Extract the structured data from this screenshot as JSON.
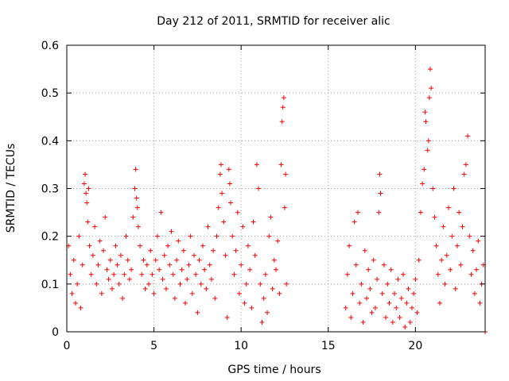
{
  "chart_data": {
    "type": "scatter",
    "title": "Day 212 of 2011, SRMTID for receiver alic",
    "xlabel": "GPS time / hours",
    "ylabel": "SRMTID / TECUs",
    "xlim": [
      0,
      24
    ],
    "ylim": [
      0,
      0.6
    ],
    "xticks": [
      0,
      5,
      10,
      15,
      20
    ],
    "xtick_labels": [
      "0",
      "5",
      "10",
      "15",
      "20"
    ],
    "yticks": [
      0,
      0.1,
      0.2,
      0.3,
      0.4,
      0.5,
      0.6
    ],
    "ytick_labels": [
      "0",
      "0.1",
      "0.2",
      "0.3",
      "0.4",
      "0.5",
      "0.6"
    ],
    "grid": true,
    "marker": "plus",
    "colors": {
      "series": "#ff0000",
      "grid": "#a0a0a0",
      "axis": "#000000"
    },
    "series": [
      {
        "name": "SRMTID",
        "points": [
          [
            0.1,
            0.18
          ],
          [
            0.2,
            0.12
          ],
          [
            0.3,
            0.08
          ],
          [
            0.4,
            0.15
          ],
          [
            0.5,
            0.06
          ],
          [
            0.6,
            0.1
          ],
          [
            0.7,
            0.2
          ],
          [
            0.8,
            0.05
          ],
          [
            0.9,
            0.14
          ],
          [
            1.0,
            0.31
          ],
          [
            1.05,
            0.33
          ],
          [
            1.1,
            0.29
          ],
          [
            1.15,
            0.27
          ],
          [
            1.2,
            0.23
          ],
          [
            1.25,
            0.3
          ],
          [
            1.3,
            0.18
          ],
          [
            1.4,
            0.12
          ],
          [
            1.5,
            0.16
          ],
          [
            1.6,
            0.22
          ],
          [
            1.7,
            0.1
          ],
          [
            1.8,
            0.14
          ],
          [
            1.9,
            0.19
          ],
          [
            2.0,
            0.08
          ],
          [
            2.1,
            0.17
          ],
          [
            2.2,
            0.24
          ],
          [
            2.3,
            0.13
          ],
          [
            2.4,
            0.11
          ],
          [
            2.5,
            0.15
          ],
          [
            2.6,
            0.09
          ],
          [
            2.7,
            0.12
          ],
          [
            2.8,
            0.18
          ],
          [
            2.9,
            0.14
          ],
          [
            3.0,
            0.1
          ],
          [
            3.1,
            0.16
          ],
          [
            3.2,
            0.07
          ],
          [
            3.3,
            0.12
          ],
          [
            3.4,
            0.2
          ],
          [
            3.5,
            0.15
          ],
          [
            3.6,
            0.11
          ],
          [
            3.7,
            0.13
          ],
          [
            3.8,
            0.24
          ],
          [
            3.9,
            0.3
          ],
          [
            3.95,
            0.34
          ],
          [
            4.0,
            0.28
          ],
          [
            4.05,
            0.26
          ],
          [
            4.1,
            0.22
          ],
          [
            4.2,
            0.18
          ],
          [
            4.3,
            0.12
          ],
          [
            4.4,
            0.15
          ],
          [
            4.5,
            0.09
          ],
          [
            4.6,
            0.14
          ],
          [
            4.7,
            0.1
          ],
          [
            4.8,
            0.17
          ],
          [
            4.9,
            0.12
          ],
          [
            5.0,
            0.08
          ],
          [
            5.1,
            0.15
          ],
          [
            5.2,
            0.2
          ],
          [
            5.3,
            0.13
          ],
          [
            5.4,
            0.25
          ],
          [
            5.5,
            0.11
          ],
          [
            5.6,
            0.16
          ],
          [
            5.7,
            0.09
          ],
          [
            5.8,
            0.18
          ],
          [
            5.9,
            0.14
          ],
          [
            6.0,
            0.21
          ],
          [
            6.1,
            0.12
          ],
          [
            6.2,
            0.07
          ],
          [
            6.3,
            0.15
          ],
          [
            6.4,
            0.19
          ],
          [
            6.5,
            0.1
          ],
          [
            6.6,
            0.13
          ],
          [
            6.7,
            0.17
          ],
          [
            6.8,
            0.06
          ],
          [
            6.9,
            0.11
          ],
          [
            7.0,
            0.14
          ],
          [
            7.1,
            0.2
          ],
          [
            7.2,
            0.08
          ],
          [
            7.3,
            0.16
          ],
          [
            7.4,
            0.12
          ],
          [
            7.5,
            0.04
          ],
          [
            7.6,
            0.15
          ],
          [
            7.7,
            0.1
          ],
          [
            7.8,
            0.18
          ],
          [
            7.9,
            0.13
          ],
          [
            8.0,
            0.09
          ],
          [
            8.1,
            0.22
          ],
          [
            8.2,
            0.14
          ],
          [
            8.3,
            0.11
          ],
          [
            8.4,
            0.17
          ],
          [
            8.5,
            0.07
          ],
          [
            8.6,
            0.2
          ],
          [
            8.7,
            0.26
          ],
          [
            8.8,
            0.33
          ],
          [
            8.85,
            0.35
          ],
          [
            8.9,
            0.29
          ],
          [
            9.0,
            0.23
          ],
          [
            9.1,
            0.16
          ],
          [
            9.2,
            0.03
          ],
          [
            9.3,
            0.34
          ],
          [
            9.35,
            0.31
          ],
          [
            9.4,
            0.27
          ],
          [
            9.5,
            0.2
          ],
          [
            9.6,
            0.12
          ],
          [
            9.7,
            0.17
          ],
          [
            9.8,
            0.25
          ],
          [
            9.9,
            0.08
          ],
          [
            10.0,
            0.14
          ],
          [
            10.1,
            0.22
          ],
          [
            10.2,
            0.06
          ],
          [
            10.3,
            0.1
          ],
          [
            10.4,
            0.18
          ],
          [
            10.5,
            0.13
          ],
          [
            10.6,
            0.05
          ],
          [
            10.7,
            0.23
          ],
          [
            10.8,
            0.16
          ],
          [
            10.9,
            0.35
          ],
          [
            11.0,
            0.3
          ],
          [
            11.1,
            0.1
          ],
          [
            11.2,
            0.02
          ],
          [
            11.3,
            0.07
          ],
          [
            11.4,
            0.12
          ],
          [
            11.5,
            0.04
          ],
          [
            11.6,
            0.2
          ],
          [
            11.7,
            0.24
          ],
          [
            11.8,
            0.09
          ],
          [
            11.9,
            0.15
          ],
          [
            12.0,
            0.13
          ],
          [
            12.1,
            0.19
          ],
          [
            12.2,
            0.08
          ],
          [
            12.3,
            0.35
          ],
          [
            12.35,
            0.44
          ],
          [
            12.4,
            0.47
          ],
          [
            12.45,
            0.49
          ],
          [
            12.5,
            0.26
          ],
          [
            12.55,
            0.33
          ],
          [
            12.6,
            0.1
          ],
          [
            16.0,
            0.05
          ],
          [
            16.1,
            0.12
          ],
          [
            16.2,
            0.18
          ],
          [
            16.3,
            0.03
          ],
          [
            16.4,
            0.08
          ],
          [
            16.5,
            0.23
          ],
          [
            16.6,
            0.14
          ],
          [
            16.7,
            0.25
          ],
          [
            16.8,
            0.06
          ],
          [
            16.9,
            0.1
          ],
          [
            17.0,
            0.02
          ],
          [
            17.1,
            0.17
          ],
          [
            17.2,
            0.07
          ],
          [
            17.3,
            0.13
          ],
          [
            17.4,
            0.09
          ],
          [
            17.5,
            0.04
          ],
          [
            17.6,
            0.15
          ],
          [
            17.7,
            0.05
          ],
          [
            17.8,
            0.11
          ],
          [
            17.9,
            0.25
          ],
          [
            17.95,
            0.33
          ],
          [
            18.0,
            0.29
          ],
          [
            18.1,
            0.08
          ],
          [
            18.2,
            0.14
          ],
          [
            18.3,
            0.03
          ],
          [
            18.4,
            0.1
          ],
          [
            18.5,
            0.06
          ],
          [
            18.6,
            0.13
          ],
          [
            18.7,
            0.02
          ],
          [
            18.8,
            0.08
          ],
          [
            18.9,
            0.05
          ],
          [
            19.0,
            0.11
          ],
          [
            19.1,
            0.03
          ],
          [
            19.2,
            0.07
          ],
          [
            19.3,
            0.12
          ],
          [
            19.4,
            0.01
          ],
          [
            19.5,
            0.06
          ],
          [
            19.6,
            0.09
          ],
          [
            19.7,
            0.02
          ],
          [
            19.8,
            0.05
          ],
          [
            19.9,
            0.08
          ],
          [
            20.0,
            0.11
          ],
          [
            20.1,
            0.04
          ],
          [
            20.2,
            0.15
          ],
          [
            20.3,
            0.25
          ],
          [
            20.4,
            0.31
          ],
          [
            20.5,
            0.34
          ],
          [
            20.55,
            0.46
          ],
          [
            20.6,
            0.44
          ],
          [
            20.7,
            0.38
          ],
          [
            20.75,
            0.4
          ],
          [
            20.8,
            0.49
          ],
          [
            20.85,
            0.55
          ],
          [
            20.9,
            0.51
          ],
          [
            21.0,
            0.3
          ],
          [
            21.1,
            0.24
          ],
          [
            21.2,
            0.18
          ],
          [
            21.3,
            0.12
          ],
          [
            21.4,
            0.06
          ],
          [
            21.5,
            0.15
          ],
          [
            21.6,
            0.22
          ],
          [
            21.7,
            0.1
          ],
          [
            21.8,
            0.16
          ],
          [
            21.9,
            0.26
          ],
          [
            22.0,
            0.13
          ],
          [
            22.1,
            0.2
          ],
          [
            22.2,
            0.3
          ],
          [
            22.3,
            0.09
          ],
          [
            22.4,
            0.18
          ],
          [
            22.5,
            0.25
          ],
          [
            22.6,
            0.14
          ],
          [
            22.7,
            0.22
          ],
          [
            22.8,
            0.33
          ],
          [
            22.9,
            0.35
          ],
          [
            23.0,
            0.41
          ],
          [
            23.1,
            0.2
          ],
          [
            23.2,
            0.12
          ],
          [
            23.3,
            0.17
          ],
          [
            23.4,
            0.08
          ],
          [
            23.5,
            0.13
          ],
          [
            23.6,
            0.19
          ],
          [
            23.7,
            0.06
          ],
          [
            23.8,
            0.1
          ],
          [
            23.9,
            0.14
          ],
          [
            24.0,
            0.0
          ]
        ]
      }
    ]
  }
}
